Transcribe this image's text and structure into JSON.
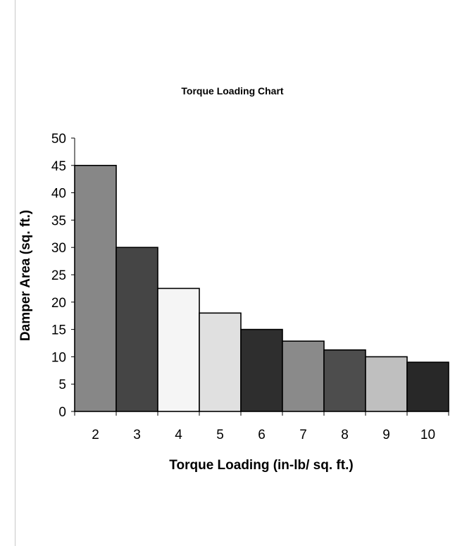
{
  "chart_data": {
    "type": "bar",
    "title": "Torque Loading Chart",
    "xlabel": "Torque Loading (in-lb/ sq. ft.)",
    "ylabel": "Damper Area (sq. ft.)",
    "categories": [
      "2",
      "3",
      "4",
      "5",
      "6",
      "7",
      "8",
      "9",
      "10"
    ],
    "values": [
      45,
      30,
      22.5,
      18,
      15,
      12.86,
      11.25,
      10,
      9
    ],
    "bar_colors": [
      "#878787",
      "#454545",
      "#f5f5f5",
      "#e0e0e0",
      "#2e2e2e",
      "#8a8a8a",
      "#4d4d4d",
      "#bfbfbf",
      "#282828"
    ],
    "ylim": [
      0,
      50
    ],
    "yticks": [
      0,
      5,
      10,
      15,
      20,
      25,
      30,
      35,
      40,
      45,
      50
    ],
    "grid": false,
    "legend": "none"
  }
}
